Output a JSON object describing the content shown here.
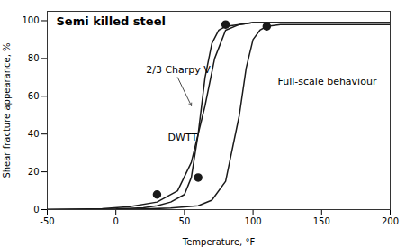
{
  "chart_data": {
    "type": "line",
    "title": "Semi killed steel",
    "xlabel": "Temperature, °F",
    "ylabel": "Shear fracture appearance, %",
    "xlim": [
      -50,
      200
    ],
    "ylim": [
      0,
      105
    ],
    "xticks": [
      -50,
      0,
      50,
      100,
      150,
      200
    ],
    "yticks": [
      0,
      20,
      40,
      60,
      80,
      100
    ],
    "color": "#1a1a1a",
    "marker": "circle",
    "series": [
      {
        "name": "2/3 Charpy V",
        "x": [
          -50,
          -30,
          -10,
          10,
          30,
          45,
          55,
          65,
          72,
          80,
          90,
          100,
          120,
          150,
          200
        ],
        "values": [
          0,
          0.2,
          0.5,
          1.5,
          4,
          10,
          25,
          55,
          80,
          95,
          98,
          99,
          99,
          99,
          99
        ],
        "points": {
          "x": [
            80
          ],
          "values": [
            98
          ]
        }
      },
      {
        "name": "DWTT",
        "x": [
          -50,
          -20,
          0,
          20,
          30,
          40,
          50,
          55,
          60,
          65,
          70,
          75,
          80,
          90,
          100,
          120,
          150,
          200
        ],
        "values": [
          0,
          0.1,
          0.3,
          1,
          2,
          4,
          8,
          17,
          40,
          70,
          88,
          95,
          97,
          98,
          99,
          99,
          99,
          99
        ],
        "points": {
          "x": [
            30,
            60
          ],
          "values": [
            8,
            17
          ]
        }
      },
      {
        "name": "Full-scale behaviour",
        "x": [
          -50,
          0,
          20,
          40,
          60,
          70,
          80,
          90,
          95,
          100,
          105,
          110,
          120,
          150,
          200
        ],
        "values": [
          0,
          0.1,
          0.3,
          0.8,
          2,
          5,
          15,
          50,
          75,
          90,
          95,
          97,
          98,
          98,
          98
        ],
        "points": {
          "x": [
            110
          ],
          "values": [
            97
          ]
        }
      }
    ]
  }
}
